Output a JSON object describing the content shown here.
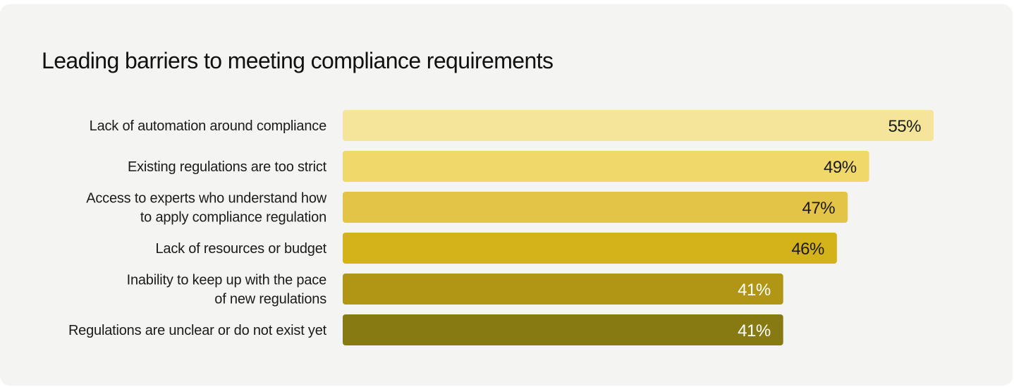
{
  "chart_data": {
    "type": "bar",
    "orientation": "horizontal",
    "title": "Leading barriers to meeting compliance requirements",
    "categories": [
      [
        "Lack of automation around compliance"
      ],
      [
        "Existing regulations are too strict"
      ],
      [
        "Access to experts who understand how",
        "to apply compliance regulation"
      ],
      [
        "Lack of resources or budget"
      ],
      [
        "Inability to keep up with the pace",
        "of new regulations"
      ],
      [
        "Regulations are unclear or do not exist yet"
      ]
    ],
    "values": [
      55,
      49,
      47,
      46,
      41,
      41
    ],
    "value_labels": [
      "55%",
      "49%",
      "47%",
      "46%",
      "41%",
      "41%"
    ],
    "bar_colors": [
      "#f5e59b",
      "#f0d96a",
      "#e3c446",
      "#d3b21a",
      "#b09614",
      "#887a13"
    ],
    "label_colors": [
      "#1a1a1a",
      "#1a1a1a",
      "#1a1a1a",
      "#1a1a1a",
      "#ffffff",
      "#ffffff"
    ],
    "xlim": [
      0,
      55
    ],
    "grid": false,
    "legend": "none"
  }
}
